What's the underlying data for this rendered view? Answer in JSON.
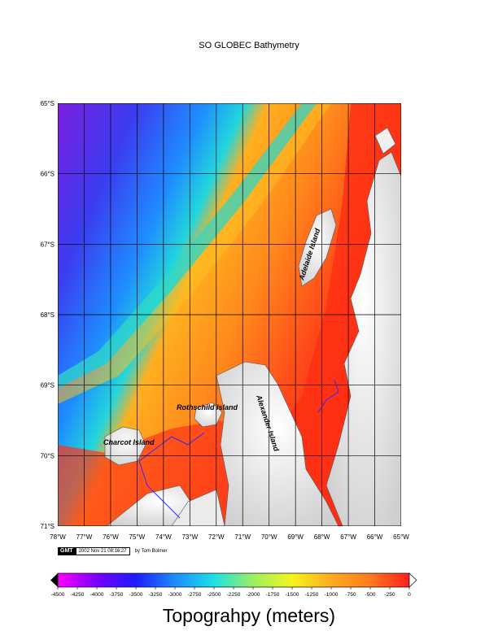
{
  "title": "SO GLOBEC Bathymetry",
  "map": {
    "lat_labels": [
      "65°S",
      "66°S",
      "67°S",
      "68°S",
      "69°S",
      "70°S",
      "71°S"
    ],
    "lon_labels": [
      "78°W",
      "77°W",
      "76°W",
      "75°W",
      "74°W",
      "73°W",
      "72°W",
      "71°W",
      "70°W",
      "69°W",
      "68°W",
      "67°W",
      "66°W",
      "65°W"
    ],
    "lat_range": [
      -71,
      -65
    ],
    "lon_range": [
      -78,
      -65
    ],
    "islands": [
      "Adelaide Island",
      "Rothschild Island",
      "Alexander Island",
      "Charcot Island"
    ]
  },
  "stamp": {
    "logo": "GMT",
    "date": "2002 Nov 21 08:16:27",
    "author": "by Tom Bolmer"
  },
  "colorbar": {
    "ticks": [
      "-4500",
      "-4250",
      "-4000",
      "-3750",
      "-3500",
      "-3250",
      "-3000",
      "-2750",
      "-2500",
      "-2250",
      "-2000",
      "-1750",
      "-1500",
      "-1250",
      "-1000",
      "-750",
      "-500",
      "-250",
      "0"
    ],
    "title": "Topograhpy (meters)",
    "colors": [
      "#ff00ff",
      "#7a00ff",
      "#1c1cff",
      "#1e8cff",
      "#1ee0e6",
      "#9bf060",
      "#f5f51e",
      "#ffaa1e",
      "#ff7a1e",
      "#ff1e1e"
    ]
  },
  "palette": {
    "deep": "#8a2be2",
    "mid": "#1e90ff",
    "shelf": "#ff8c1a",
    "shallow": "#ff2a1a",
    "land": "#f2f2f2"
  }
}
